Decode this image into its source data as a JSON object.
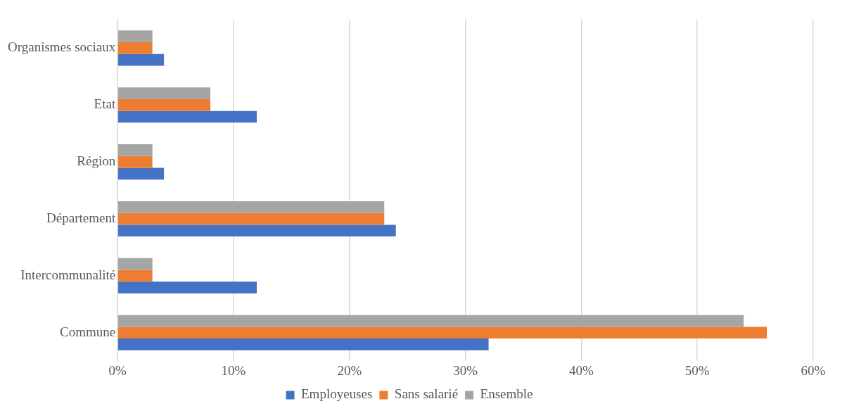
{
  "chart_data": {
    "type": "bar",
    "orientation": "horizontal",
    "categories": [
      "Organismes sociaux",
      "Etat",
      "Région",
      "Département",
      "Intercommunalité",
      "Commune"
    ],
    "series": [
      {
        "name": "Employeuses",
        "color": "#4472c4",
        "values": [
          4,
          12,
          4,
          24,
          12,
          32
        ]
      },
      {
        "name": "Sans salarié",
        "color": "#ed7d31",
        "values": [
          3,
          8,
          3,
          23,
          3,
          56
        ]
      },
      {
        "name": "Ensemble",
        "color": "#a5a5a5",
        "values": [
          3,
          8,
          3,
          23,
          3,
          54
        ]
      }
    ],
    "xlim": [
      0,
      60
    ],
    "xticks": [
      {
        "value": 0,
        "label": "0%"
      },
      {
        "value": 10,
        "label": "10%"
      },
      {
        "value": 20,
        "label": "20%"
      },
      {
        "value": 30,
        "label": "30%"
      },
      {
        "value": 40,
        "label": "40%"
      },
      {
        "value": 50,
        "label": "50%"
      },
      {
        "value": 60,
        "label": "60%"
      }
    ],
    "grid": "x",
    "legend": "bottom"
  }
}
